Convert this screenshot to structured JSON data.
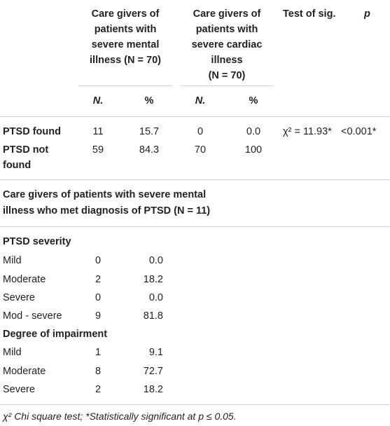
{
  "header": {
    "group1": [
      "Care givers of",
      "patients with",
      "severe mental",
      "illness (N = 70)"
    ],
    "group2": [
      "Care givers of",
      "patients with",
      "severe cardiac",
      "illness",
      "(N = 70)"
    ],
    "test_of_sig": "Test of sig.",
    "p": "p",
    "n1": "N.",
    "pct1": "%",
    "n2": "N.",
    "pct2": "%"
  },
  "ptsd_rows": [
    {
      "label": [
        "PTSD found"
      ],
      "n1": "11",
      "pct1": "15.7",
      "n2": "0",
      "pct2": "0.0",
      "test": "χ² = 11.93*",
      "p": "<0.001*"
    },
    {
      "label": [
        "PTSD not",
        "found"
      ],
      "n1": "59",
      "pct1": "84.3",
      "n2": "70",
      "pct2": "100",
      "test": "",
      "p": ""
    }
  ],
  "subsection_title": [
    "Care givers of patients with severe mental",
    "illness who met diagnosis of PTSD (N = 11)"
  ],
  "severity": {
    "title": "PTSD severity",
    "rows": [
      {
        "label": "Mild",
        "n": "0",
        "pct": "0.0"
      },
      {
        "label": "Moderate",
        "n": "2",
        "pct": "18.2"
      },
      {
        "label": "Severe",
        "n": "0",
        "pct": "0.0"
      },
      {
        "label": "Mod - severe",
        "n": "9",
        "pct": "81.8"
      }
    ]
  },
  "impairment": {
    "title": "Degree of impairment",
    "rows": [
      {
        "label": "Mild",
        "n": "1",
        "pct": "9.1"
      },
      {
        "label": "Moderate",
        "n": "8",
        "pct": "72.7"
      },
      {
        "label": "Severe",
        "n": "2",
        "pct": "18.2"
      }
    ]
  },
  "footnote": "χ² Chi square test; *Statistically significant at p ≤ 0.05."
}
